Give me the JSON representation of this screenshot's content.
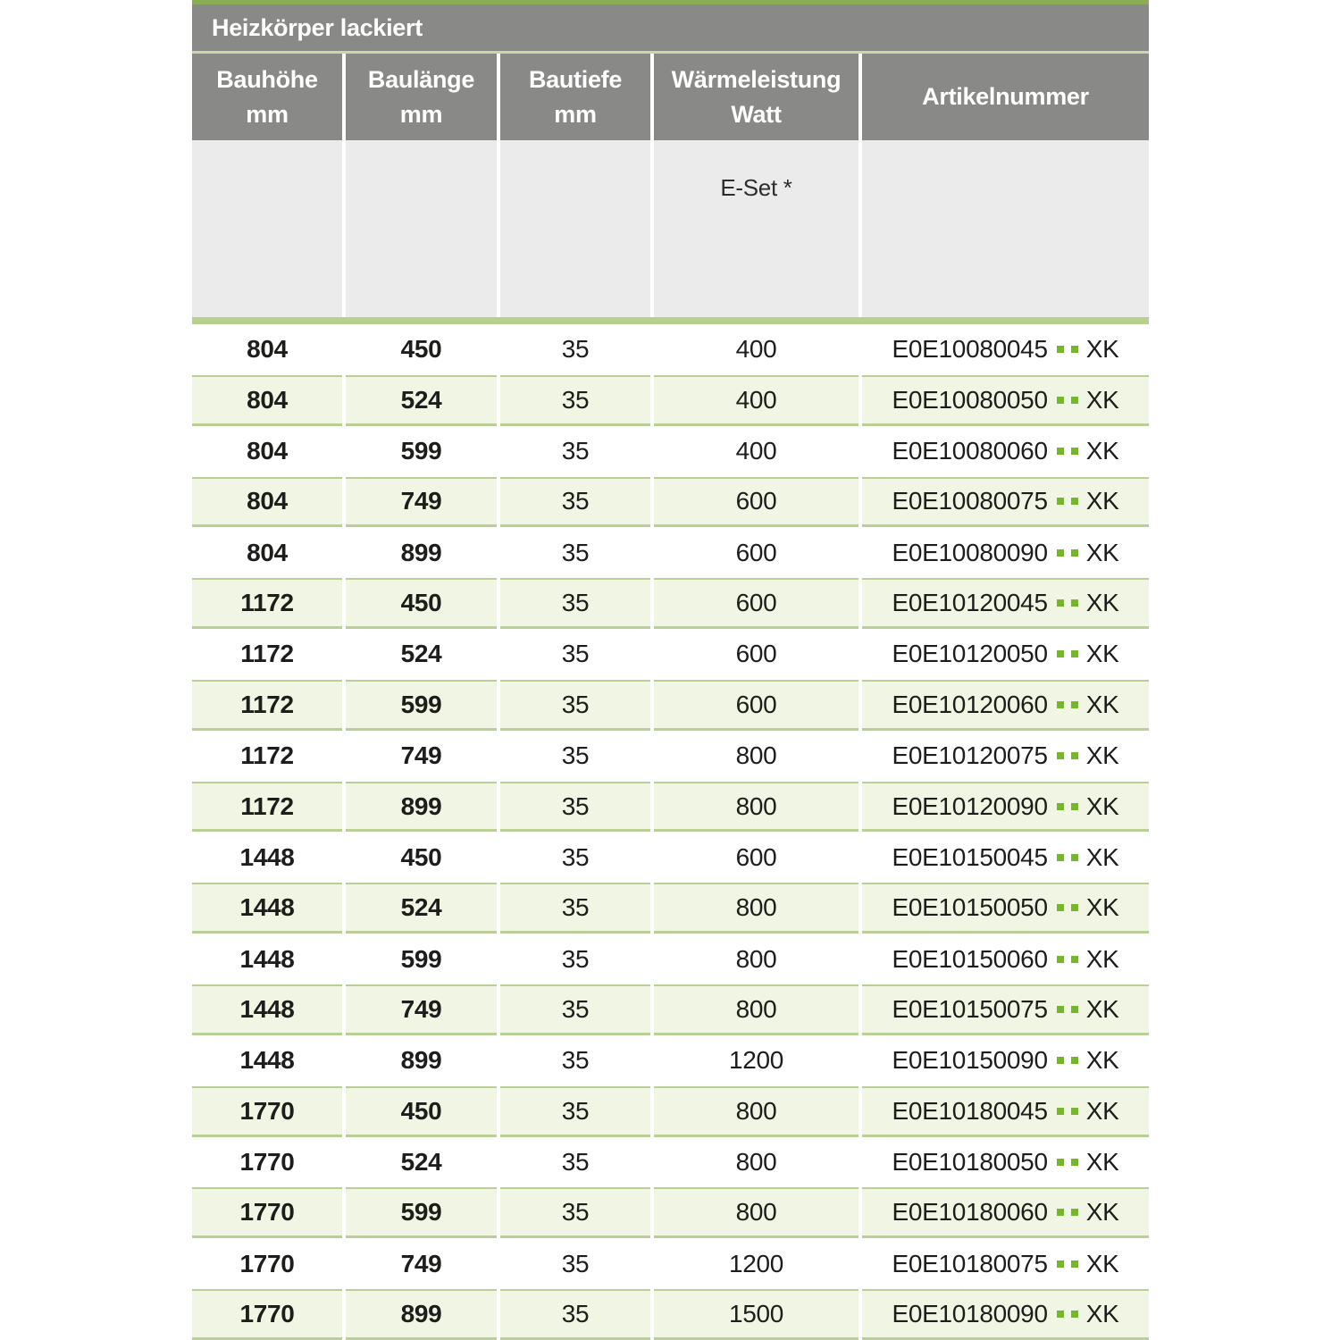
{
  "table": {
    "title": "Heizkörper lackiert",
    "columns": [
      {
        "line1": "Bauhöhe",
        "line2": "mm"
      },
      {
        "line1": "Baulänge",
        "line2": "mm"
      },
      {
        "line1": "Bautiefe",
        "line2": "mm"
      },
      {
        "line1": "Wärmeleistung",
        "line2": "Watt"
      },
      {
        "line1": "Artikelnummer",
        "line2": ""
      }
    ],
    "subheader_label": "E-Set *",
    "rows": [
      {
        "bauhoehe": "804",
        "baulaenge": "450",
        "bautiefe": "35",
        "watt": "400",
        "artikel_prefix": "E0E10080045",
        "artikel_suffix": "XK"
      },
      {
        "bauhoehe": "804",
        "baulaenge": "524",
        "bautiefe": "35",
        "watt": "400",
        "artikel_prefix": "E0E10080050",
        "artikel_suffix": "XK"
      },
      {
        "bauhoehe": "804",
        "baulaenge": "599",
        "bautiefe": "35",
        "watt": "400",
        "artikel_prefix": "E0E10080060",
        "artikel_suffix": "XK"
      },
      {
        "bauhoehe": "804",
        "baulaenge": "749",
        "bautiefe": "35",
        "watt": "600",
        "artikel_prefix": "E0E10080075",
        "artikel_suffix": "XK"
      },
      {
        "bauhoehe": "804",
        "baulaenge": "899",
        "bautiefe": "35",
        "watt": "600",
        "artikel_prefix": "E0E10080090",
        "artikel_suffix": "XK"
      },
      {
        "bauhoehe": "1172",
        "baulaenge": "450",
        "bautiefe": "35",
        "watt": "600",
        "artikel_prefix": "E0E10120045",
        "artikel_suffix": "XK"
      },
      {
        "bauhoehe": "1172",
        "baulaenge": "524",
        "bautiefe": "35",
        "watt": "600",
        "artikel_prefix": "E0E10120050",
        "artikel_suffix": "XK"
      },
      {
        "bauhoehe": "1172",
        "baulaenge": "599",
        "bautiefe": "35",
        "watt": "600",
        "artikel_prefix": "E0E10120060",
        "artikel_suffix": "XK"
      },
      {
        "bauhoehe": "1172",
        "baulaenge": "749",
        "bautiefe": "35",
        "watt": "800",
        "artikel_prefix": "E0E10120075",
        "artikel_suffix": "XK"
      },
      {
        "bauhoehe": "1172",
        "baulaenge": "899",
        "bautiefe": "35",
        "watt": "800",
        "artikel_prefix": "E0E10120090",
        "artikel_suffix": "XK"
      },
      {
        "bauhoehe": "1448",
        "baulaenge": "450",
        "bautiefe": "35",
        "watt": "600",
        "artikel_prefix": "E0E10150045",
        "artikel_suffix": "XK"
      },
      {
        "bauhoehe": "1448",
        "baulaenge": "524",
        "bautiefe": "35",
        "watt": "800",
        "artikel_prefix": "E0E10150050",
        "artikel_suffix": "XK"
      },
      {
        "bauhoehe": "1448",
        "baulaenge": "599",
        "bautiefe": "35",
        "watt": "800",
        "artikel_prefix": "E0E10150060",
        "artikel_suffix": "XK"
      },
      {
        "bauhoehe": "1448",
        "baulaenge": "749",
        "bautiefe": "35",
        "watt": "800",
        "artikel_prefix": "E0E10150075",
        "artikel_suffix": "XK"
      },
      {
        "bauhoehe": "1448",
        "baulaenge": "899",
        "bautiefe": "35",
        "watt": "1200",
        "artikel_prefix": "E0E10150090",
        "artikel_suffix": "XK"
      },
      {
        "bauhoehe": "1770",
        "baulaenge": "450",
        "bautiefe": "35",
        "watt": "800",
        "artikel_prefix": "E0E10180045",
        "artikel_suffix": "XK"
      },
      {
        "bauhoehe": "1770",
        "baulaenge": "524",
        "bautiefe": "35",
        "watt": "800",
        "artikel_prefix": "E0E10180050",
        "artikel_suffix": "XK"
      },
      {
        "bauhoehe": "1770",
        "baulaenge": "599",
        "bautiefe": "35",
        "watt": "800",
        "artikel_prefix": "E0E10180060",
        "artikel_suffix": "XK"
      },
      {
        "bauhoehe": "1770",
        "baulaenge": "749",
        "bautiefe": "35",
        "watt": "1200",
        "artikel_prefix": "E0E10180075",
        "artikel_suffix": "XK"
      },
      {
        "bauhoehe": "1770",
        "baulaenge": "899",
        "bautiefe": "35",
        "watt": "1500",
        "artikel_prefix": "E0E10180090",
        "artikel_suffix": "XK"
      }
    ]
  },
  "colors": {
    "header_gray": "#898987",
    "subheader_gray": "#ebebeb",
    "top_bar_green": "#8aad53",
    "hairline_green": "#c8d9a8",
    "band_green": "#b7d08e",
    "row_alt_bg": "#f1f5e4",
    "row_border_green": "#b9cf96",
    "dot_green": "#74b62c",
    "text_dark": "#1d1d1b",
    "header_text": "#ffffff"
  }
}
